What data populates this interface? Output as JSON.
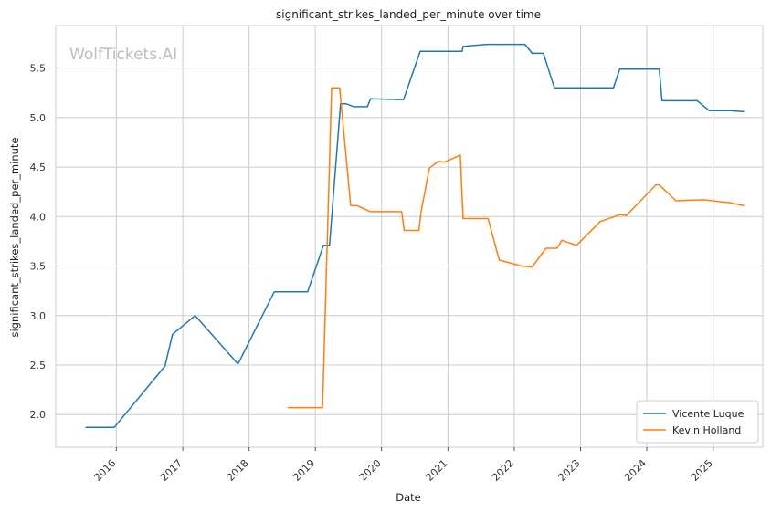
{
  "chart_data": {
    "type": "line",
    "title": "significant_strikes_landed_per_minute over time",
    "xlabel": "Date",
    "ylabel": "significant_strikes_landed_per_minute",
    "watermark": "WolfTickets.AI",
    "x_ticks": [
      "2016",
      "2017",
      "2018",
      "2019",
      "2020",
      "2021",
      "2022",
      "2023",
      "2024",
      "2025"
    ],
    "y_ticks": [
      "2.0",
      "2.5",
      "3.0",
      "3.5",
      "4.0",
      "4.5",
      "5.0",
      "5.5"
    ],
    "xlim": [
      "2015-02-01",
      "2025-10-01"
    ],
    "ylim": [
      1.67,
      5.93
    ],
    "grid": true,
    "legend_position": "bottom-right",
    "series": [
      {
        "name": "Vicente Luque",
        "color": "#1f77b4",
        "points": [
          [
            "2015-07-15",
            1.87
          ],
          [
            "2015-12-20",
            1.87
          ],
          [
            "2016-09-25",
            2.49
          ],
          [
            "2016-11-05",
            2.81
          ],
          [
            "2017-03-10",
            3.0
          ],
          [
            "2017-11-01",
            2.51
          ],
          [
            "2018-05-20",
            3.24
          ],
          [
            "2018-11-20",
            3.24
          ],
          [
            "2019-02-15",
            3.71
          ],
          [
            "2019-03-20",
            3.71
          ],
          [
            "2019-05-20",
            5.14
          ],
          [
            "2019-06-20",
            5.14
          ],
          [
            "2019-08-01",
            5.11
          ],
          [
            "2019-10-15",
            5.11
          ],
          [
            "2019-11-01",
            5.19
          ],
          [
            "2020-05-01",
            5.18
          ],
          [
            "2020-08-01",
            5.67
          ],
          [
            "2021-03-20",
            5.67
          ],
          [
            "2021-03-25",
            5.72
          ],
          [
            "2021-08-01",
            5.74
          ],
          [
            "2022-03-01",
            5.74
          ],
          [
            "2022-04-10",
            5.65
          ],
          [
            "2022-06-10",
            5.65
          ],
          [
            "2022-08-10",
            5.3
          ],
          [
            "2023-07-01",
            5.3
          ],
          [
            "2023-08-05",
            5.49
          ],
          [
            "2024-03-10",
            5.49
          ],
          [
            "2024-03-25",
            5.17
          ],
          [
            "2024-10-05",
            5.17
          ],
          [
            "2024-12-10",
            5.07
          ],
          [
            "2025-04-01",
            5.07
          ],
          [
            "2025-06-20",
            5.06
          ]
        ]
      },
      {
        "name": "Kevin Holland",
        "color": "#ff7f0e",
        "points": [
          [
            "2018-08-01",
            2.07
          ],
          [
            "2019-02-10",
            2.07
          ],
          [
            "2019-04-01",
            5.3
          ],
          [
            "2019-05-15",
            5.3
          ],
          [
            "2019-07-15",
            4.11
          ],
          [
            "2019-08-20",
            4.11
          ],
          [
            "2019-11-01",
            4.05
          ],
          [
            "2020-04-20",
            4.05
          ],
          [
            "2020-05-05",
            3.86
          ],
          [
            "2020-07-25",
            3.86
          ],
          [
            "2020-08-05",
            4.04
          ],
          [
            "2020-09-20",
            4.49
          ],
          [
            "2020-11-10",
            4.56
          ],
          [
            "2020-12-10",
            4.55
          ],
          [
            "2021-03-10",
            4.62
          ],
          [
            "2021-03-25",
            3.98
          ],
          [
            "2021-08-10",
            3.98
          ],
          [
            "2021-10-10",
            3.56
          ],
          [
            "2022-02-10",
            3.5
          ],
          [
            "2022-04-10",
            3.49
          ],
          [
            "2022-06-25",
            3.68
          ],
          [
            "2022-08-25",
            3.68
          ],
          [
            "2022-09-20",
            3.76
          ],
          [
            "2022-12-10",
            3.71
          ],
          [
            "2023-04-20",
            3.95
          ],
          [
            "2023-08-10",
            4.02
          ],
          [
            "2023-09-10",
            4.01
          ],
          [
            "2024-02-20",
            4.32
          ],
          [
            "2024-03-10",
            4.32
          ],
          [
            "2024-06-10",
            4.16
          ],
          [
            "2024-11-10",
            4.17
          ],
          [
            "2025-04-01",
            4.14
          ],
          [
            "2025-06-20",
            4.11
          ]
        ]
      }
    ]
  }
}
